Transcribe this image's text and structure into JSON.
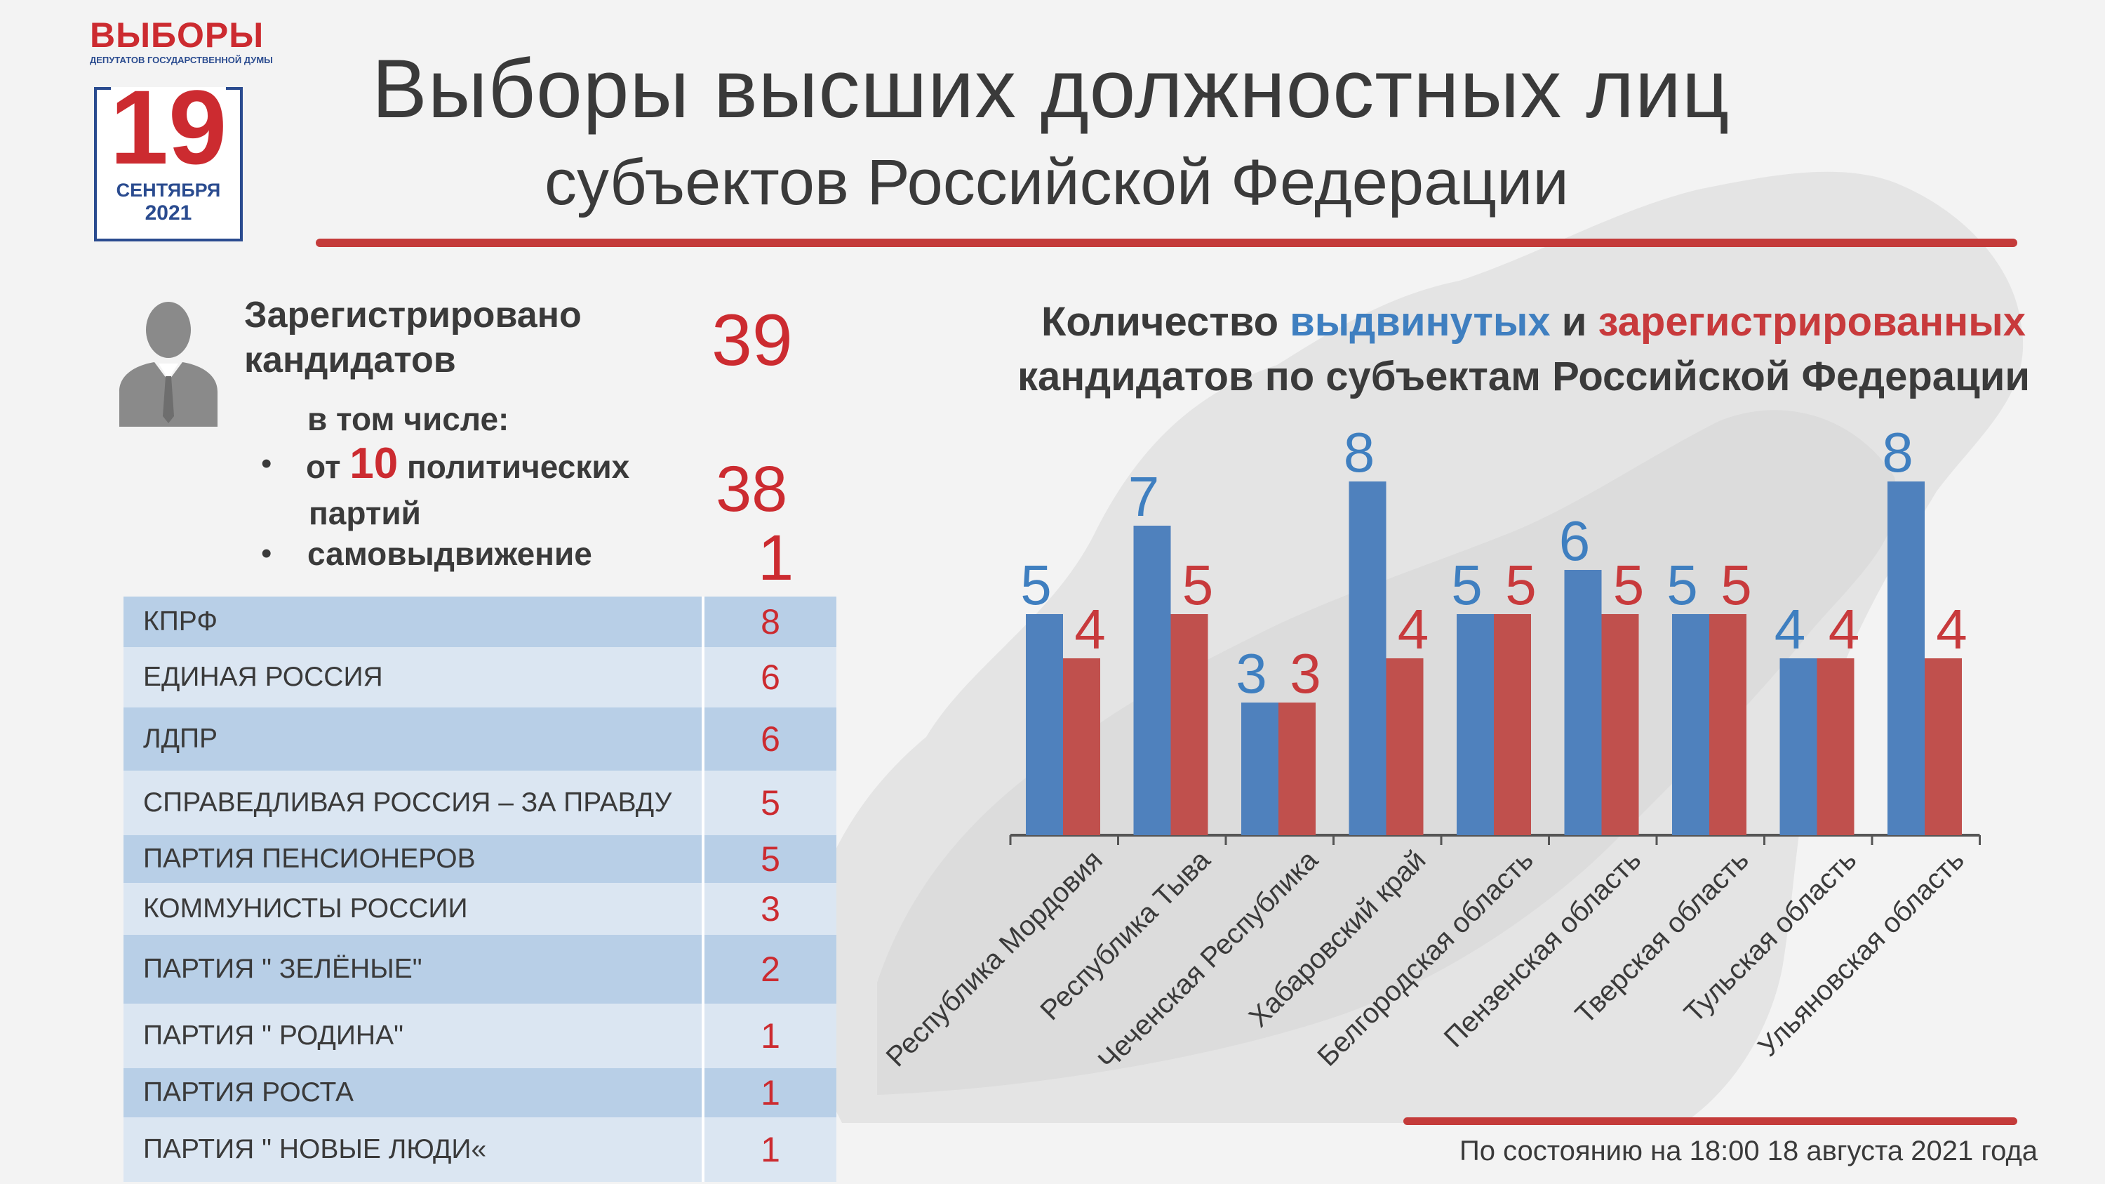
{
  "logo": {
    "top": "ВЫБОРЫ",
    "sub": "ДЕПУТАТОВ ГОСУДАРСТВЕННОЙ ДУМЫ",
    "day": "19",
    "month": "СЕНТЯБРЯ",
    "year": "2021"
  },
  "header": {
    "title_line1": "Выборы высших должностных лиц",
    "title_line2": "субъектов Российской Федерации"
  },
  "stats": {
    "registered_label_1": "Зарегистрировано",
    "registered_label_2": "кандидатов",
    "registered_value": "39",
    "including_label": "в том числе:",
    "from_prefix": "от",
    "parties_count": "10",
    "parties_label_1": "политических",
    "parties_label_2": "партий",
    "parties_value": "38",
    "self_label": "самовыдвижение",
    "self_value": "1"
  },
  "parties": [
    {
      "name": "КПРФ",
      "value": "8"
    },
    {
      "name": "ЕДИНАЯ РОССИЯ",
      "value": "6"
    },
    {
      "name": "ЛДПР",
      "value": "6"
    },
    {
      "name": "СПРАВЕДЛИВАЯ РОССИЯ – ЗА ПРАВДУ",
      "value": "5"
    },
    {
      "name": "ПАРТИЯ ПЕНСИОНЕРОВ",
      "value": "5"
    },
    {
      "name": "КОММУНИСТЫ РОССИИ",
      "value": "3"
    },
    {
      "name": "ПАРТИЯ \" ЗЕЛЁНЫЕ\"",
      "value": "2"
    },
    {
      "name": "ПАРТИЯ \" РОДИНА\"",
      "value": "1"
    },
    {
      "name": "ПАРТИЯ РОСТА",
      "value": "1"
    },
    {
      "name": "ПАРТИЯ \" НОВЫЕ ЛЮДИ«",
      "value": "1"
    }
  ],
  "chart_title": {
    "part1": "Количество",
    "part2": "выдвинутых",
    "part3": "и",
    "part4": "зарегистрированных",
    "line2": "кандидатов по субъектам Российской Федерации"
  },
  "chart_data": {
    "type": "bar",
    "categories": [
      "Республика Мордовия",
      "Республика Тыва",
      "Чеченская Республика",
      "Хабаровский край",
      "Белгородская область",
      "Пензенская область",
      "Тверская область",
      "Тульская область",
      "Ульяновская область"
    ],
    "series": [
      {
        "name": "выдвинутых",
        "color": "#4f81bd",
        "label_color": "#3f7fc0",
        "values": [
          5,
          7,
          3,
          8,
          5,
          6,
          5,
          4,
          8
        ]
      },
      {
        "name": "зарегистрированных",
        "color": "#c0504d",
        "label_color": "#c83a3c",
        "values": [
          4,
          5,
          3,
          4,
          5,
          5,
          5,
          4,
          4
        ]
      }
    ],
    "ylim": [
      0,
      8
    ],
    "grid": false,
    "legend": "none"
  },
  "footer": {
    "as_of": "По состоянию на 18:00 18 августа 2021 года"
  }
}
